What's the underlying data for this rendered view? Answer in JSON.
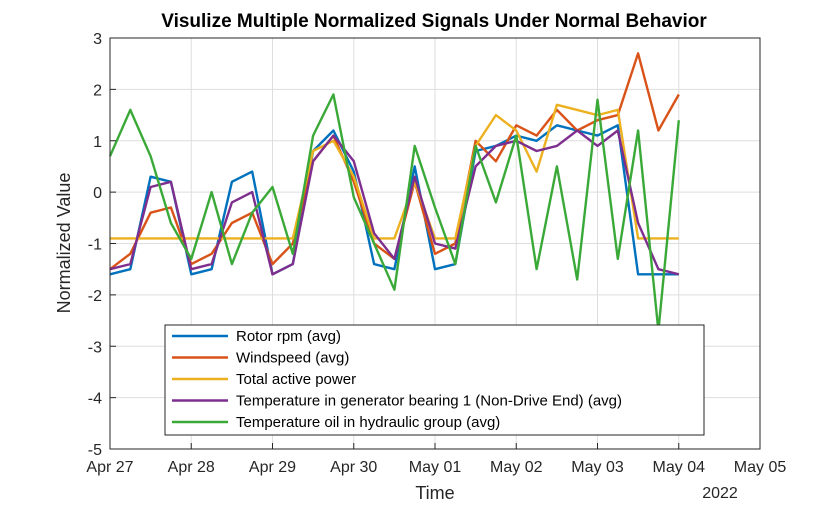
{
  "chart_data": {
    "type": "line",
    "title": "Visulize Multiple Normalized Signals Under Normal Behavior",
    "xlabel": "Time",
    "ylabel": "Normalized Value",
    "x_secondary_label": "2022",
    "x_ticks": [
      "Apr 27",
      "Apr 28",
      "Apr 29",
      "Apr 30",
      "May 01",
      "May 02",
      "May 03",
      "May 04",
      "May 05"
    ],
    "x_range_days": [
      0,
      8
    ],
    "ylim": [
      -5,
      3
    ],
    "y_ticks": [
      "-5",
      "-4",
      "-3",
      "-2",
      "-1",
      "0",
      "1",
      "2",
      "3"
    ],
    "grid": true,
    "legend_position": "bottom-left",
    "x_days": [
      0.0,
      0.25,
      0.5,
      0.75,
      1.0,
      1.25,
      1.5,
      1.75,
      2.0,
      2.25,
      2.5,
      2.75,
      3.0,
      3.25,
      3.5,
      3.75,
      4.0,
      4.25,
      4.5,
      4.75,
      5.0,
      5.25,
      5.5,
      5.75,
      6.0,
      6.25,
      6.5,
      6.75,
      7.0
    ],
    "series": [
      {
        "name": "Rotor rpm (avg)",
        "color": "#0072BD",
        "values": [
          -1.6,
          -1.5,
          0.3,
          0.2,
          -1.6,
          -1.5,
          0.2,
          0.4,
          -1.6,
          -1.4,
          0.8,
          1.2,
          0.4,
          -1.4,
          -1.5,
          0.5,
          -1.5,
          -1.4,
          0.8,
          0.9,
          1.1,
          1.0,
          1.3,
          1.2,
          1.1,
          1.3,
          -1.6,
          -1.6,
          -1.6
        ]
      },
      {
        "name": "Windspeed (avg)",
        "color": "#D95319",
        "values": [
          -1.5,
          -1.2,
          -0.4,
          -0.3,
          -1.4,
          -1.2,
          -0.6,
          -0.4,
          -1.4,
          -1.0,
          0.6,
          1.1,
          0.2,
          -1.0,
          -1.3,
          0.2,
          -1.2,
          -1.0,
          1.0,
          0.6,
          1.3,
          1.1,
          1.6,
          1.2,
          1.4,
          1.5,
          2.7,
          1.2,
          1.9
        ]
      },
      {
        "name": "Total active power",
        "color": "#EDB120",
        "values": [
          -0.9,
          -0.9,
          -0.9,
          -0.9,
          -0.9,
          -0.9,
          -0.9,
          -0.9,
          -0.9,
          -0.9,
          0.8,
          1.0,
          0.3,
          -0.9,
          -0.9,
          0.2,
          -0.9,
          -0.9,
          0.9,
          1.5,
          1.2,
          0.4,
          1.7,
          1.6,
          1.5,
          1.6,
          -0.9,
          -0.9,
          -0.9
        ]
      },
      {
        "name": "Temperature in generator bearing 1 (Non-Drive End) (avg)",
        "color": "#7E2F8E",
        "values": [
          -1.5,
          -1.4,
          0.1,
          0.2,
          -1.5,
          -1.4,
          -0.2,
          0.0,
          -1.6,
          -1.4,
          0.6,
          1.1,
          0.6,
          -0.8,
          -1.3,
          0.3,
          -1.0,
          -1.1,
          0.5,
          0.9,
          1.0,
          0.8,
          0.9,
          1.2,
          0.9,
          1.2,
          -0.6,
          -1.5,
          -1.6
        ]
      },
      {
        "name": "Temperature oil in hydraulic group (avg)",
        "color": "#3AA938",
        "values": [
          0.7,
          1.6,
          0.7,
          -0.6,
          -1.3,
          0.0,
          -1.4,
          -0.4,
          0.1,
          -1.2,
          1.1,
          1.9,
          -0.1,
          -1.0,
          -1.9,
          0.9,
          -0.3,
          -1.4,
          0.9,
          -0.2,
          1.1,
          -1.5,
          0.5,
          -1.7,
          1.8,
          -1.3,
          1.2,
          -2.7,
          1.4
        ]
      }
    ]
  }
}
